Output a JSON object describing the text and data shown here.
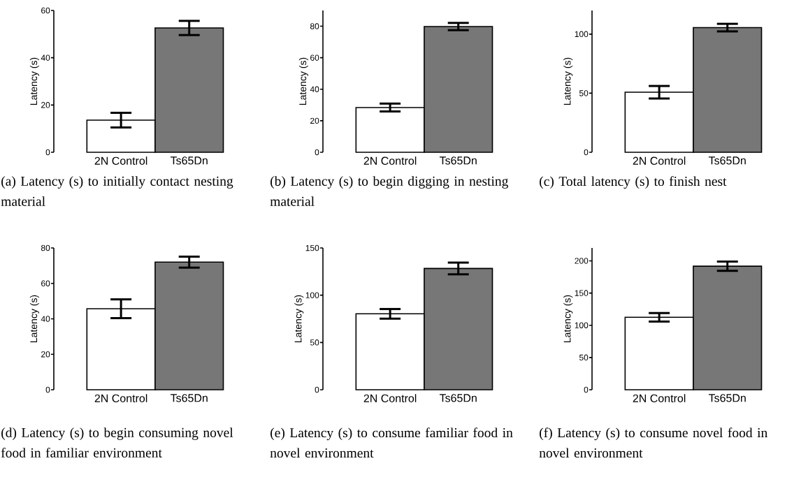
{
  "chart_data": [
    {
      "type": "bar",
      "title": "(a) Latency (s) to initially contact nesting material",
      "ylabel": "Latency (s)",
      "categories": [
        "2N Control",
        "Ts65Dn"
      ],
      "values": [
        13.6,
        52.6
      ],
      "errors": [
        3.1,
        3.0
      ],
      "colors": [
        "#ffffff",
        "#777777"
      ],
      "ylim": [
        0,
        60
      ],
      "yticks": [
        0,
        20,
        40,
        60
      ]
    },
    {
      "type": "bar",
      "title": "(b) Latency (s) to begin digging in nesting material",
      "ylabel": "Latency (s)",
      "categories": [
        "2N Control",
        "Ts65Dn"
      ],
      "values": [
        28.4,
        79.8
      ],
      "errors": [
        2.5,
        2.3
      ],
      "colors": [
        "#ffffff",
        "#777777"
      ],
      "ylim": [
        0,
        90
      ],
      "yticks": [
        0,
        20,
        40,
        60,
        80
      ]
    },
    {
      "type": "bar",
      "title": "(c) Total latency (s) to finish nest",
      "ylabel": "Latency (s)",
      "categories": [
        "2N Control",
        "Ts65Dn"
      ],
      "values": [
        50.8,
        105.5
      ],
      "errors": [
        5.3,
        3.2
      ],
      "colors": [
        "#ffffff",
        "#777777"
      ],
      "ylim": [
        0,
        120
      ],
      "yticks": [
        0,
        50,
        100
      ]
    },
    {
      "type": "bar",
      "title": "(d) Latency (s) to begin consuming novel food in familiar environment",
      "ylabel": "Latency (s)",
      "categories": [
        "2N Control",
        "Ts65Dn"
      ],
      "values": [
        45.7,
        72.0
      ],
      "errors": [
        5.3,
        3.1
      ],
      "colors": [
        "#ffffff",
        "#777777"
      ],
      "ylim": [
        0,
        80
      ],
      "yticks": [
        0,
        20,
        40,
        60,
        80
      ]
    },
    {
      "type": "bar",
      "title": "(e) Latency (s) to consume familiar food in novel environment",
      "ylabel": "Latency (s)",
      "categories": [
        "2N Control",
        "Ts65Dn"
      ],
      "values": [
        80.3,
        128.3
      ],
      "errors": [
        5.1,
        6.2
      ],
      "colors": [
        "#ffffff",
        "#777777"
      ],
      "ylim": [
        0,
        150
      ],
      "yticks": [
        0,
        50,
        100,
        150
      ]
    },
    {
      "type": "bar",
      "title": "(f) Latency (s) to consume novel food in novel environment",
      "ylabel": "Latency (s)",
      "categories": [
        "2N Control",
        "Ts65Dn"
      ],
      "values": [
        112.4,
        191.7
      ],
      "errors": [
        6.6,
        7.2
      ],
      "colors": [
        "#ffffff",
        "#777777"
      ],
      "ylim": [
        0,
        220
      ],
      "yticks": [
        0,
        50,
        100,
        150,
        200
      ]
    }
  ]
}
